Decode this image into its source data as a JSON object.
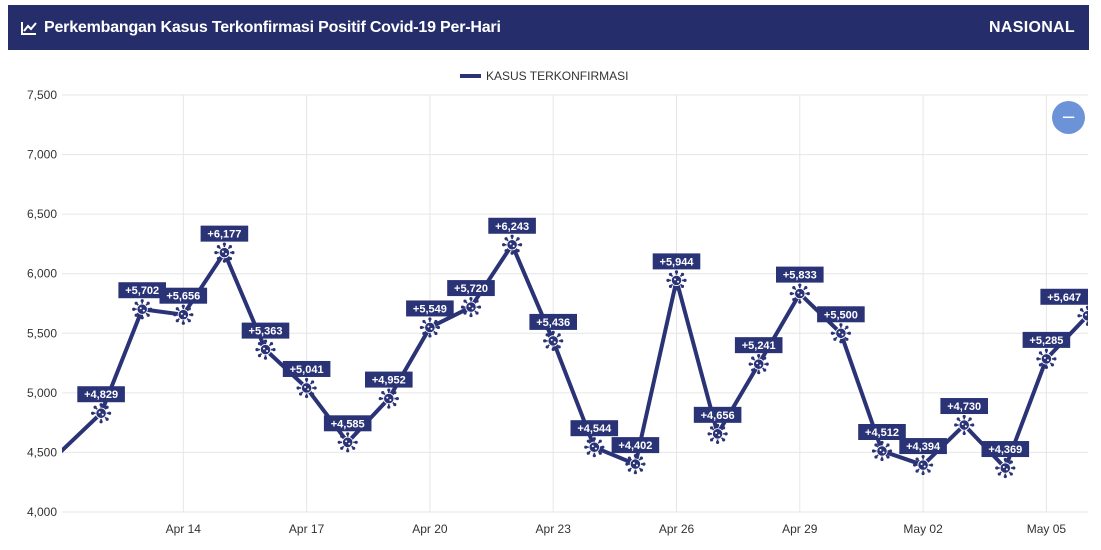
{
  "header": {
    "title": "Perkembangan Kasus Terkonfirmasi Positif Covid-19 Per-Hari",
    "scope": "NASIONAL",
    "title_icon": "line-chart-icon"
  },
  "controls": {
    "collapse_icon": "minus-icon",
    "collapse_symbol": "−"
  },
  "colors": {
    "header_bg": "#252e6b",
    "line": "#2b3377",
    "button": "#6c93d8",
    "grid": "#e6e6e6"
  },
  "chart_data": {
    "type": "line",
    "legend": {
      "label": "KASUS TERKONFIRMASI",
      "position": "top-center"
    },
    "x": [
      "Apr 11",
      "Apr 12",
      "Apr 13",
      "Apr 14",
      "Apr 15",
      "Apr 16",
      "Apr 17",
      "Apr 18",
      "Apr 19",
      "Apr 20",
      "Apr 21",
      "Apr 22",
      "Apr 23",
      "Apr 24",
      "Apr 25",
      "Apr 26",
      "Apr 27",
      "Apr 28",
      "Apr 29",
      "Apr 30",
      "May 01",
      "May 02",
      "May 03",
      "May 04",
      "May 05",
      "May 06"
    ],
    "series": [
      {
        "name": "KASUS TERKONFIRMASI",
        "values": [
          4500,
          4829,
          5702,
          5656,
          6177,
          5363,
          5041,
          4585,
          4952,
          5549,
          5720,
          6243,
          5436,
          4544,
          4402,
          5944,
          4656,
          5241,
          5833,
          5500,
          4512,
          4394,
          4730,
          4369,
          5285,
          5647
        ],
        "labels": [
          null,
          "+4,829",
          "+5,702",
          "+5,656",
          "+6,177",
          "+5,363",
          "+5,041",
          "+4,585",
          "+4,952",
          "+5,549",
          "+5,720",
          "+6,243",
          "+5,436",
          "+4,544",
          "+4,402",
          "+5,944",
          "+4,656",
          "+5,241",
          "+5,833",
          "+5,500",
          "+4,512",
          "+4,394",
          "+4,730",
          "+4,369",
          "+5,285",
          "+5,647"
        ]
      }
    ],
    "x_tick_labels": [
      "Apr 14",
      "Apr 17",
      "Apr 20",
      "Apr 23",
      "Apr 26",
      "Apr 29",
      "May 02",
      "May 05"
    ],
    "y_tick_labels": [
      "4,000",
      "4,500",
      "5,000",
      "5,500",
      "6,000",
      "6,500",
      "7,000",
      "7,500"
    ],
    "ylim": [
      4000,
      7500
    ],
    "grid": true
  }
}
